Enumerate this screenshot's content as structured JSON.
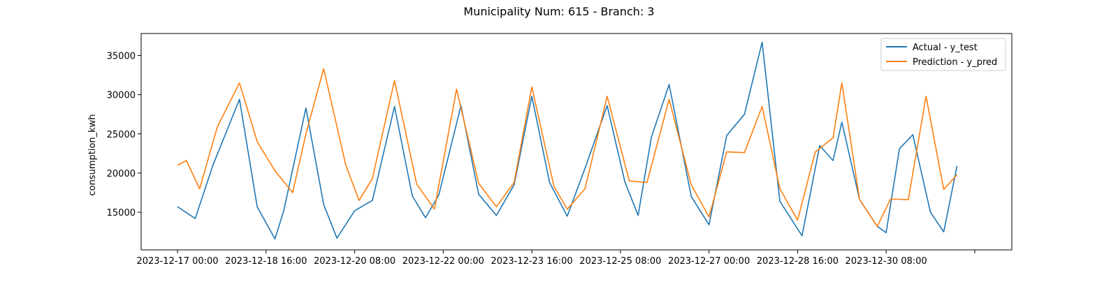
{
  "colors": {
    "actual": "#1f77b4",
    "prediction": "#ff7f0e",
    "frame": "#000000",
    "background": "#ffffff"
  },
  "chart_data": {
    "type": "line",
    "title": "Municipality Num: 615 - Branch: 3",
    "xlabel": "",
    "ylabel": "consumption_kwh",
    "x_start": "2023-12-17 00:00",
    "x_end": "2023-12-31 16:00",
    "ylim": [
      10200,
      37800
    ],
    "grid": false,
    "legend_position": "top-right",
    "x_ticks": [
      "2023-12-17 00:00",
      "2023-12-18 16:00",
      "2023-12-20 08:00",
      "2023-12-22 00:00",
      "2023-12-23 16:00",
      "2023-12-25 08:00",
      "2023-12-27 00:00",
      "2023-12-28 16:00",
      "2023-12-30 08:00",
      "2024-01-01 00:00"
    ],
    "x_tick_labels": [
      "2023-12-17 00:00",
      "2023-12-18 16:00",
      "2023-12-20 08:00",
      "2023-12-22 00:00",
      "2023-12-23 16:00",
      "2023-12-25 08:00",
      "2023-12-27 00:00",
      "2023-12-28 16:00",
      "2023-12-30 08:00",
      ""
    ],
    "y_ticks": [
      15000,
      20000,
      25000,
      30000,
      35000
    ],
    "y_tick_labels": [
      "15000",
      "20000",
      "25000",
      "30000",
      "35000"
    ],
    "series": [
      {
        "name": "Actual - y_test",
        "color": "#1f77b4",
        "points": [
          [
            "2023-12-17 00:00",
            15700
          ],
          [
            "2023-12-17 08:00",
            14200
          ],
          [
            "2023-12-17 16:00",
            21000
          ],
          [
            "2023-12-18 04:00",
            29400
          ],
          [
            "2023-12-18 12:00",
            15700
          ],
          [
            "2023-12-18 20:00",
            11600
          ],
          [
            "2023-12-19 00:00",
            15200
          ],
          [
            "2023-12-19 10:00",
            28300
          ],
          [
            "2023-12-19 18:00",
            16000
          ],
          [
            "2023-12-20 00:00",
            11700
          ],
          [
            "2023-12-20 08:00",
            15200
          ],
          [
            "2023-12-20 16:00",
            16500
          ],
          [
            "2023-12-21 02:00",
            28500
          ],
          [
            "2023-12-21 10:00",
            17100
          ],
          [
            "2023-12-21 16:00",
            14300
          ],
          [
            "2023-12-21 22:00",
            17200
          ],
          [
            "2023-12-22 08:00",
            28600
          ],
          [
            "2023-12-22 16:00",
            17300
          ],
          [
            "2023-12-23 00:00",
            14600
          ],
          [
            "2023-12-23 08:00",
            18500
          ],
          [
            "2023-12-23 16:00",
            29800
          ],
          [
            "2023-12-24 00:00",
            18800
          ],
          [
            "2023-12-24 08:00",
            14500
          ],
          [
            "2023-12-24 16:00",
            20600
          ],
          [
            "2023-12-25 02:00",
            28600
          ],
          [
            "2023-12-25 10:00",
            18900
          ],
          [
            "2023-12-25 16:00",
            14600
          ],
          [
            "2023-12-25 22:00",
            24600
          ],
          [
            "2023-12-26 06:00",
            31300
          ],
          [
            "2023-12-26 16:00",
            17000
          ],
          [
            "2023-12-27 00:00",
            13400
          ],
          [
            "2023-12-27 08:00",
            24800
          ],
          [
            "2023-12-27 16:00",
            27500
          ],
          [
            "2023-12-28 00:00",
            36700
          ],
          [
            "2023-12-28 08:00",
            16400
          ],
          [
            "2023-12-28 18:00",
            12000
          ],
          [
            "2023-12-29 02:00",
            23500
          ],
          [
            "2023-12-29 08:00",
            21600
          ],
          [
            "2023-12-29 12:00",
            26500
          ],
          [
            "2023-12-29 20:00",
            16600
          ],
          [
            "2023-12-30 04:00",
            13200
          ],
          [
            "2023-12-30 08:00",
            12400
          ],
          [
            "2023-12-30 14:00",
            23100
          ],
          [
            "2023-12-30 20:00",
            24900
          ],
          [
            "2023-12-31 04:00",
            15000
          ],
          [
            "2023-12-31 10:00",
            12500
          ],
          [
            "2023-12-31 16:00",
            20900
          ]
        ]
      },
      {
        "name": "Prediction - y_pred",
        "color": "#ff7f0e",
        "points": [
          [
            "2023-12-17 00:00",
            21000
          ],
          [
            "2023-12-17 04:00",
            21600
          ],
          [
            "2023-12-17 10:00",
            18000
          ],
          [
            "2023-12-17 18:00",
            25900
          ],
          [
            "2023-12-18 04:00",
            31500
          ],
          [
            "2023-12-18 12:00",
            24000
          ],
          [
            "2023-12-18 20:00",
            20300
          ],
          [
            "2023-12-19 04:00",
            17500
          ],
          [
            "2023-12-19 10:00",
            25000
          ],
          [
            "2023-12-19 18:00",
            33300
          ],
          [
            "2023-12-20 04:00",
            21000
          ],
          [
            "2023-12-20 10:00",
            16500
          ],
          [
            "2023-12-20 16:00",
            19300
          ],
          [
            "2023-12-21 02:00",
            31800
          ],
          [
            "2023-12-21 12:00",
            18600
          ],
          [
            "2023-12-21 20:00",
            15400
          ],
          [
            "2023-12-22 06:00",
            30700
          ],
          [
            "2023-12-22 16:00",
            18700
          ],
          [
            "2023-12-23 00:00",
            15700
          ],
          [
            "2023-12-23 08:00",
            18800
          ],
          [
            "2023-12-23 16:00",
            31000
          ],
          [
            "2023-12-24 02:00",
            18300
          ],
          [
            "2023-12-24 08:00",
            15400
          ],
          [
            "2023-12-24 16:00",
            18000
          ],
          [
            "2023-12-25 02:00",
            29800
          ],
          [
            "2023-12-25 12:00",
            19000
          ],
          [
            "2023-12-25 20:00",
            18800
          ],
          [
            "2023-12-26 06:00",
            29400
          ],
          [
            "2023-12-26 16:00",
            18500
          ],
          [
            "2023-12-27 00:00",
            14400
          ],
          [
            "2023-12-27 08:00",
            22700
          ],
          [
            "2023-12-27 16:00",
            22600
          ],
          [
            "2023-12-28 00:00",
            28500
          ],
          [
            "2023-12-28 08:00",
            18000
          ],
          [
            "2023-12-28 16:00",
            14000
          ],
          [
            "2023-12-29 00:00",
            22700
          ],
          [
            "2023-12-29 08:00",
            24500
          ],
          [
            "2023-12-29 12:00",
            31500
          ],
          [
            "2023-12-29 20:00",
            16600
          ],
          [
            "2023-12-30 04:00",
            13200
          ],
          [
            "2023-12-30 10:00",
            16700
          ],
          [
            "2023-12-30 18:00",
            16600
          ],
          [
            "2023-12-31 02:00",
            29800
          ],
          [
            "2023-12-31 10:00",
            17900
          ],
          [
            "2023-12-31 16:00",
            19800
          ]
        ]
      }
    ]
  }
}
